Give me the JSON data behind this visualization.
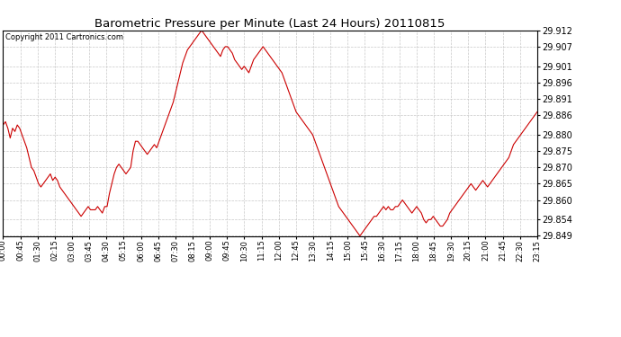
{
  "title": "Barometric Pressure per Minute (Last 24 Hours) 20110815",
  "copyright": "Copyright 2011 Cartronics.com",
  "line_color": "#cc0000",
  "background_color": "#ffffff",
  "grid_color": "#c8c8c8",
  "ylim": [
    29.849,
    29.912
  ],
  "yticks": [
    29.849,
    29.854,
    29.86,
    29.865,
    29.87,
    29.875,
    29.88,
    29.886,
    29.891,
    29.896,
    29.901,
    29.907,
    29.912
  ],
  "xtick_labels": [
    "00:00",
    "00:45",
    "01:30",
    "02:15",
    "03:00",
    "03:45",
    "04:30",
    "05:15",
    "06:00",
    "06:45",
    "07:30",
    "08:15",
    "09:00",
    "09:45",
    "10:30",
    "11:15",
    "12:00",
    "12:45",
    "13:30",
    "14:15",
    "15:00",
    "15:45",
    "16:30",
    "17:15",
    "18:00",
    "18:45",
    "19:30",
    "20:15",
    "21:00",
    "21:45",
    "22:30",
    "23:15"
  ],
  "pressure_data": [
    29.883,
    29.884,
    29.882,
    29.879,
    29.882,
    29.881,
    29.883,
    29.882,
    29.88,
    29.878,
    29.876,
    29.873,
    29.87,
    29.869,
    29.867,
    29.865,
    29.864,
    29.865,
    29.866,
    29.867,
    29.868,
    29.866,
    29.867,
    29.866,
    29.864,
    29.863,
    29.862,
    29.861,
    29.86,
    29.859,
    29.858,
    29.857,
    29.856,
    29.855,
    29.856,
    29.857,
    29.858,
    29.857,
    29.857,
    29.857,
    29.858,
    29.857,
    29.856,
    29.858,
    29.858,
    29.862,
    29.865,
    29.868,
    29.87,
    29.871,
    29.87,
    29.869,
    29.868,
    29.869,
    29.87,
    29.875,
    29.878,
    29.878,
    29.877,
    29.876,
    29.875,
    29.874,
    29.875,
    29.876,
    29.877,
    29.876,
    29.878,
    29.88,
    29.882,
    29.884,
    29.886,
    29.888,
    29.89,
    29.893,
    29.896,
    29.899,
    29.902,
    29.904,
    29.906,
    29.907,
    29.908,
    29.909,
    29.91,
    29.911,
    29.912,
    29.911,
    29.91,
    29.909,
    29.908,
    29.907,
    29.906,
    29.905,
    29.904,
    29.906,
    29.907,
    29.907,
    29.906,
    29.905,
    29.903,
    29.902,
    29.901,
    29.9,
    29.901,
    29.9,
    29.899,
    29.901,
    29.903,
    29.904,
    29.905,
    29.906,
    29.907,
    29.906,
    29.905,
    29.904,
    29.903,
    29.902,
    29.901,
    29.9,
    29.899,
    29.897,
    29.895,
    29.893,
    29.891,
    29.889,
    29.887,
    29.886,
    29.885,
    29.884,
    29.883,
    29.882,
    29.881,
    29.88,
    29.878,
    29.876,
    29.874,
    29.872,
    29.87,
    29.868,
    29.866,
    29.864,
    29.862,
    29.86,
    29.858,
    29.857,
    29.856,
    29.855,
    29.854,
    29.853,
    29.852,
    29.851,
    29.85,
    29.849,
    29.85,
    29.851,
    29.852,
    29.853,
    29.854,
    29.855,
    29.855,
    29.856,
    29.857,
    29.858,
    29.857,
    29.858,
    29.857,
    29.857,
    29.858,
    29.858,
    29.859,
    29.86,
    29.859,
    29.858,
    29.857,
    29.856,
    29.857,
    29.858,
    29.857,
    29.856,
    29.854,
    29.853,
    29.854,
    29.854,
    29.855,
    29.854,
    29.853,
    29.852,
    29.852,
    29.853,
    29.854,
    29.856,
    29.857,
    29.858,
    29.859,
    29.86,
    29.861,
    29.862,
    29.863,
    29.864,
    29.865,
    29.864,
    29.863,
    29.864,
    29.865,
    29.866,
    29.865,
    29.864,
    29.865,
    29.866,
    29.867,
    29.868,
    29.869,
    29.87,
    29.871,
    29.872,
    29.873,
    29.875,
    29.877,
    29.878,
    29.879,
    29.88,
    29.881,
    29.882,
    29.883,
    29.884,
    29.885,
    29.886,
    29.887
  ]
}
